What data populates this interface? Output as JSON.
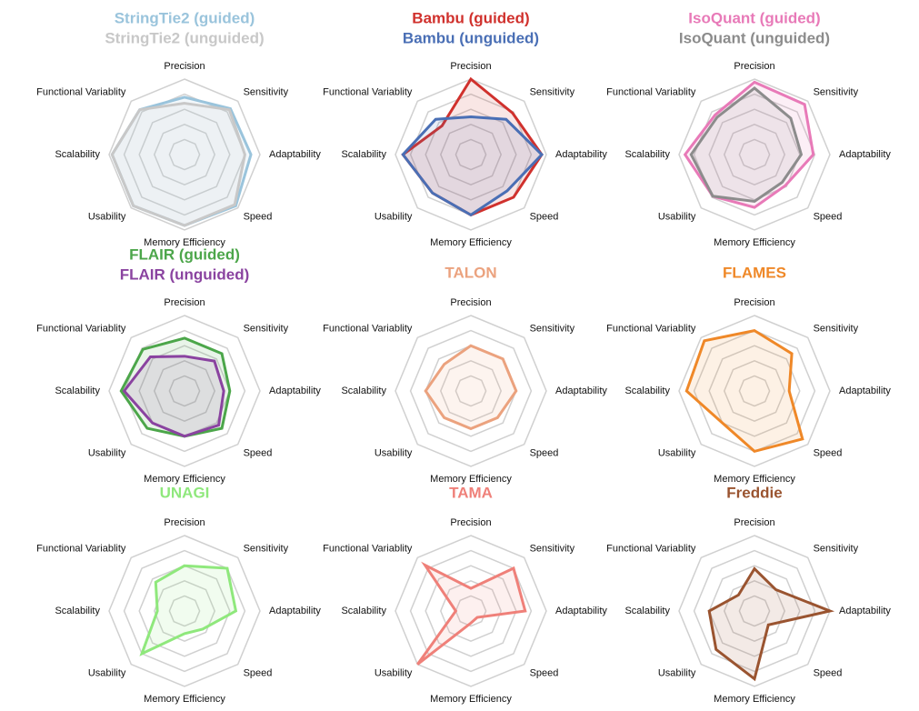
{
  "chart_data": [
    {
      "type": "radar",
      "categories": [
        "Precision",
        "Sensitivity",
        "Adaptability",
        "Speed",
        "Memory Efficiency",
        "Usability",
        "Scalability",
        "Functional Variablity"
      ],
      "rlim": [
        0,
        5
      ],
      "rticks": [
        1,
        2,
        3,
        4,
        5
      ],
      "series": [
        {
          "name": "StringTie2 (guided)",
          "color": "#9ac4dc",
          "values": [
            3.8,
            4.3,
            4.4,
            4.8,
            4.7,
            4.8,
            4.8,
            4.2
          ]
        },
        {
          "name": "StringTie2 (unguided)",
          "color": "#c8c8c8",
          "values": [
            3.4,
            4.2,
            4.0,
            4.7,
            4.7,
            4.8,
            4.8,
            4.2
          ]
        }
      ]
    },
    {
      "type": "radar",
      "categories": [
        "Precision",
        "Sensitivity",
        "Adaptability",
        "Speed",
        "Memory Efficiency",
        "Usability",
        "Scalability",
        "Functional Variablity"
      ],
      "rlim": [
        0,
        5
      ],
      "rticks": [
        1,
        2,
        3,
        4,
        5
      ],
      "series": [
        {
          "name": "Bambu (guided)",
          "color": "#d0312d",
          "values": [
            5,
            3.9,
            4.7,
            4.0,
            4.0,
            3.6,
            4.5,
            2.7
          ]
        },
        {
          "name": "Bambu (unguided)",
          "color": "#4a6fb5",
          "values": [
            2.5,
            3.3,
            4.7,
            3.4,
            4.0,
            3.6,
            4.5,
            3.3
          ]
        }
      ]
    },
    {
      "type": "radar",
      "categories": [
        "Precision",
        "Sensitivity",
        "Adaptability",
        "Speed",
        "Memory Efficiency",
        "Usability",
        "Scalability",
        "Functional Variablity"
      ],
      "rlim": [
        0,
        5
      ],
      "rticks": [
        1,
        2,
        3,
        4,
        5
      ],
      "series": [
        {
          "name": "IsoQuant (guided)",
          "color": "#e87ab8",
          "values": [
            4.8,
            4.7,
            3.9,
            2.9,
            3.5,
            3.9,
            4.6,
            3.7
          ]
        },
        {
          "name": "IsoQuant (unguided)",
          "color": "#8c8c8c",
          "values": [
            4.4,
            3.4,
            3.1,
            2.6,
            3.1,
            3.9,
            4.2,
            3.5
          ]
        }
      ]
    },
    {
      "type": "radar",
      "categories": [
        "Precision",
        "Sensitivity",
        "Adaptability",
        "Speed",
        "Memory Efficiency",
        "Usability",
        "Scalability",
        "Functional Variablity"
      ],
      "rlim": [
        0,
        5
      ],
      "rticks": [
        1,
        2,
        3,
        4,
        5
      ],
      "series": [
        {
          "name": "FLAIR (guided)",
          "color": "#4ca64a",
          "values": [
            3.5,
            3.5,
            3.0,
            3.5,
            3.0,
            3.5,
            4.2,
            3.9
          ]
        },
        {
          "name": "FLAIR (unguided)",
          "color": "#8a43a0",
          "values": [
            2.3,
            2.8,
            2.6,
            3.2,
            3.0,
            3.0,
            4.0,
            3.2
          ]
        }
      ]
    },
    {
      "type": "radar",
      "categories": [
        "Precision",
        "Sensitivity",
        "Adaptability",
        "Speed",
        "Memory Efficiency",
        "Usability",
        "Scalability",
        "Functional Variablity"
      ],
      "rlim": [
        0,
        5
      ],
      "rticks": [
        1,
        2,
        3,
        4,
        5
      ],
      "series": [
        {
          "name": "TALON",
          "color": "#eba27e",
          "values": [
            3.0,
            3.0,
            3.0,
            2.5,
            2.5,
            2.5,
            3.0,
            2.5
          ]
        }
      ]
    },
    {
      "type": "radar",
      "categories": [
        "Precision",
        "Sensitivity",
        "Adaptability",
        "Speed",
        "Memory Efficiency",
        "Usability",
        "Scalability",
        "Functional Variablity"
      ],
      "rlim": [
        0,
        5
      ],
      "rticks": [
        1,
        2,
        3,
        4,
        5
      ],
      "series": [
        {
          "name": "FLAMES",
          "color": "#ef8828",
          "values": [
            4.0,
            3.5,
            2.3,
            4.5,
            4.0,
            3.0,
            4.5,
            4.7
          ]
        }
      ]
    },
    {
      "type": "radar",
      "categories": [
        "Precision",
        "Sensitivity",
        "Adaptability",
        "Speed",
        "Memory Efficiency",
        "Usability",
        "Scalability",
        "Functional Variablity"
      ],
      "rlim": [
        0,
        5
      ],
      "rticks": [
        1,
        2,
        3,
        4,
        5
      ],
      "series": [
        {
          "name": "UNAGI",
          "color": "#8fe87c",
          "values": [
            3.0,
            4.0,
            3.4,
            1.7,
            1.5,
            4.0,
            1.8,
            2.7
          ]
        }
      ]
    },
    {
      "type": "radar",
      "categories": [
        "Precision",
        "Sensitivity",
        "Adaptability",
        "Speed",
        "Memory Efficiency",
        "Usability",
        "Scalability",
        "Functional Variablity"
      ],
      "rlim": [
        0,
        5
      ],
      "rticks": [
        1,
        2,
        3,
        4,
        5
      ],
      "series": [
        {
          "name": "TAMA",
          "color": "#ef8079",
          "values": [
            1.5,
            4.0,
            3.6,
            0.6,
            0.8,
            5.0,
            1.0,
            4.3
          ]
        }
      ]
    },
    {
      "type": "radar",
      "categories": [
        "Precision",
        "Sensitivity",
        "Adaptability",
        "Speed",
        "Memory Efficiency",
        "Usability",
        "Scalability",
        "Functional Variablity"
      ],
      "rlim": [
        0,
        5
      ],
      "rticks": [
        1,
        2,
        3,
        4,
        5
      ],
      "series": [
        {
          "name": "Freddie",
          "color": "#9a5430",
          "values": [
            2.8,
            2.0,
            5.0,
            1.3,
            4.5,
            3.6,
            3.0,
            1.5
          ]
        }
      ]
    }
  ]
}
